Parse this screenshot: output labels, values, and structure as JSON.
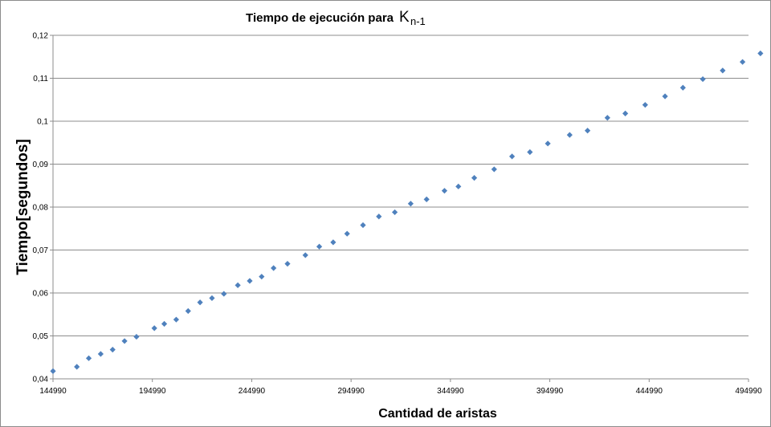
{
  "chart_data": {
    "type": "scatter",
    "title_main": "Tiempo de ejecución para",
    "title_symbol": "K",
    "title_subscript": "n-1",
    "xlabel": "Cantidad de aristas",
    "ylabel": "Tiempo[segundos]",
    "xlim": [
      144990,
      494990
    ],
    "ylim": [
      0.04,
      0.12
    ],
    "x_ticks": [
      "144990",
      "194990",
      "244990",
      "294990",
      "344990",
      "394990",
      "444990",
      "494990"
    ],
    "y_ticks": [
      "0,04",
      "0,05",
      "0,06",
      "0,07",
      "0,08",
      "0,09",
      "0,1",
      "0,11",
      "0,12"
    ],
    "grid": "horizontal",
    "marker_color": "#4f81bd",
    "points": [
      [
        144990,
        0.0418
      ],
      [
        156990,
        0.0428
      ],
      [
        162990,
        0.0448
      ],
      [
        168990,
        0.0458
      ],
      [
        174990,
        0.0468
      ],
      [
        180990,
        0.0488
      ],
      [
        186990,
        0.0498
      ],
      [
        195990,
        0.0518
      ],
      [
        200990,
        0.0528
      ],
      [
        206990,
        0.0538
      ],
      [
        212990,
        0.0558
      ],
      [
        218990,
        0.0578
      ],
      [
        224990,
        0.0588
      ],
      [
        230990,
        0.0598
      ],
      [
        237990,
        0.0618
      ],
      [
        243990,
        0.0628
      ],
      [
        249990,
        0.0638
      ],
      [
        255990,
        0.0658
      ],
      [
        262990,
        0.0668
      ],
      [
        271990,
        0.0688
      ],
      [
        278990,
        0.0708
      ],
      [
        285990,
        0.0718
      ],
      [
        292990,
        0.0738
      ],
      [
        300990,
        0.0758
      ],
      [
        308990,
        0.0778
      ],
      [
        316990,
        0.0788
      ],
      [
        324990,
        0.0808
      ],
      [
        332990,
        0.0818
      ],
      [
        341990,
        0.0838
      ],
      [
        348990,
        0.0848
      ],
      [
        356990,
        0.0868
      ],
      [
        366990,
        0.0888
      ],
      [
        375990,
        0.0918
      ],
      [
        384990,
        0.0928
      ],
      [
        393990,
        0.0948
      ],
      [
        404990,
        0.0968
      ],
      [
        413990,
        0.0978
      ],
      [
        423990,
        0.1008
      ],
      [
        432990,
        0.1018
      ],
      [
        442990,
        0.1038
      ],
      [
        452990,
        0.1058
      ],
      [
        461990,
        0.1078
      ],
      [
        471990,
        0.1098
      ],
      [
        481990,
        0.1118
      ],
      [
        491990,
        0.1138
      ],
      [
        500990,
        0.1158
      ]
    ]
  }
}
